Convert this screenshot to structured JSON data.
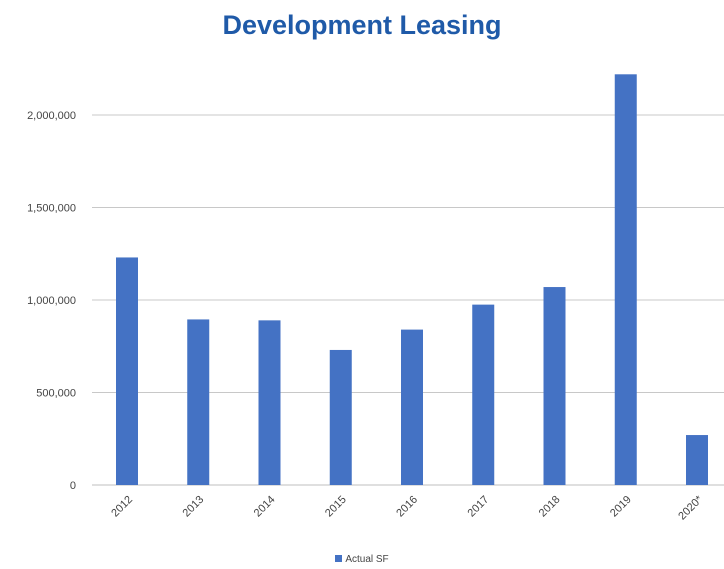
{
  "chart_data": {
    "type": "bar",
    "title": "Development Leasing",
    "categories": [
      "2012",
      "2013",
      "2014",
      "2015",
      "2016",
      "2017",
      "2018",
      "2019",
      "2020*"
    ],
    "series": [
      {
        "name": "Actual SF",
        "values": [
          1230000,
          895000,
          890000,
          730000,
          840000,
          975000,
          1070000,
          2220000,
          270000
        ]
      }
    ],
    "y_ticks": [
      "0",
      "500,000",
      "1,000,000",
      "1,500,000",
      "2,000,000"
    ],
    "ylim": [
      0,
      2000000
    ],
    "grid": true,
    "legend_position": "bottom",
    "color": "#4472c4"
  }
}
